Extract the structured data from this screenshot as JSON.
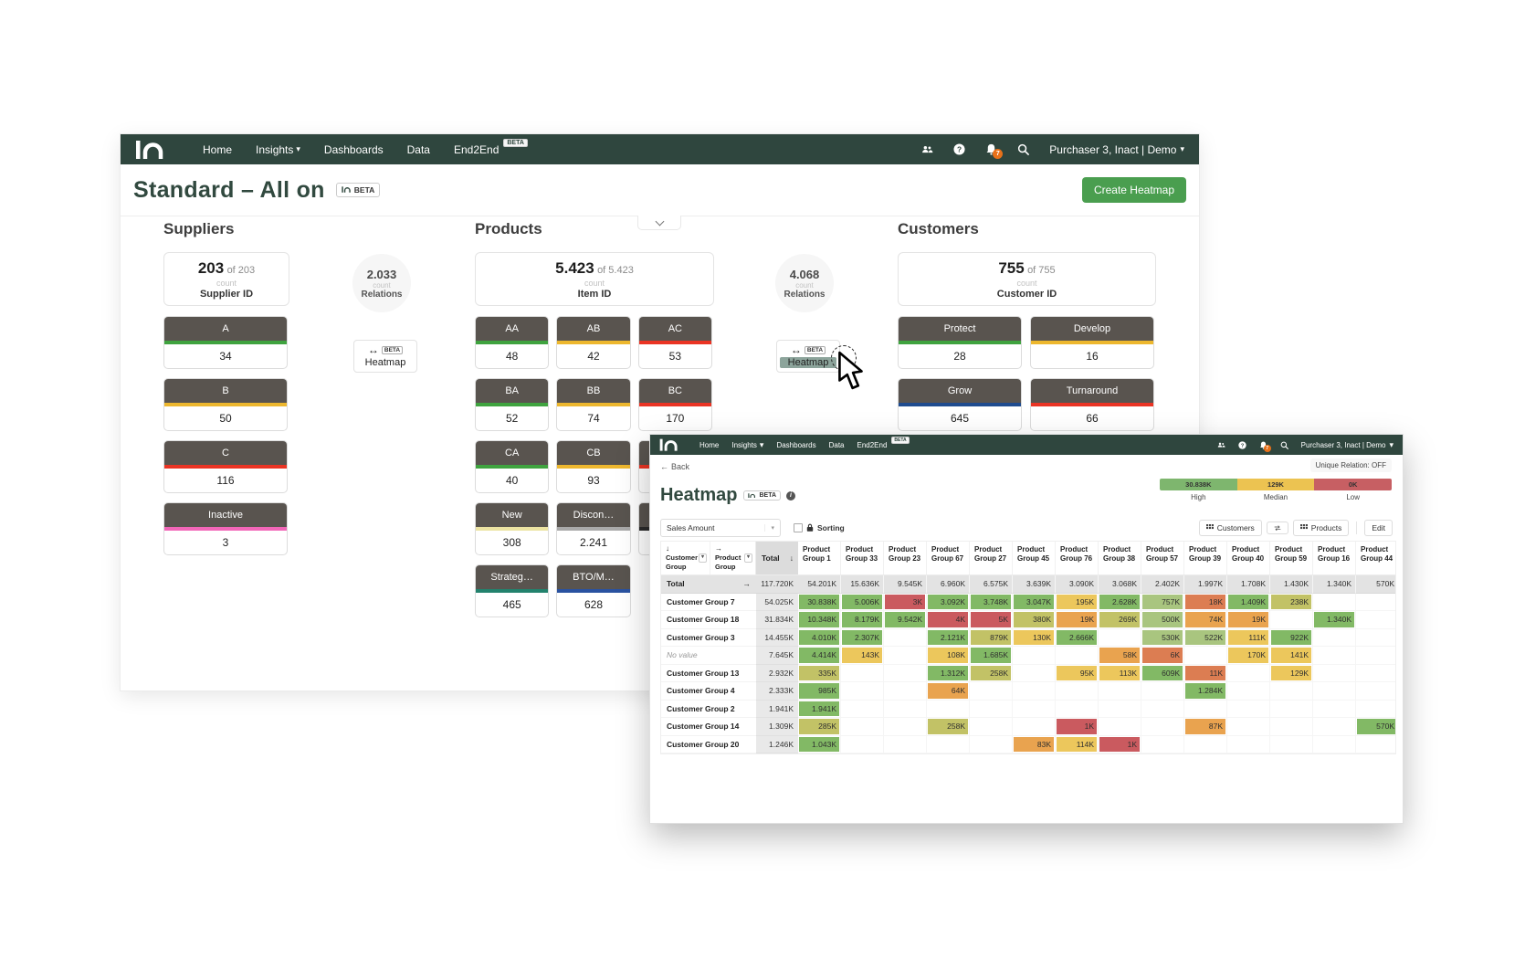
{
  "colors": {
    "navbar_bg": "#2f463e",
    "title_green": "#31493f",
    "button_green": "#4a9e4f",
    "badge_orange": "#e8711a",
    "segment_header": "#59544f",
    "cell": {
      "g": "#82b965",
      "lg": "#a9c57f",
      "yg": "#c2c266",
      "y": "#ecc75c",
      "o": "#e9a34f",
      "ro": "#dc7d52",
      "r": "#ca5a5f"
    }
  },
  "icons": {
    "caret": "▾",
    "back_arrow": "←",
    "relation_arrow": "↔",
    "info": "i",
    "row_arrow": "↓",
    "col_arrow": "→",
    "sort_arrow": "↓",
    "total_arrow": "→"
  },
  "navbar": {
    "items": [
      {
        "label": "Home"
      },
      {
        "label": "Insights"
      },
      {
        "label": "Dashboards"
      },
      {
        "label": "Data"
      },
      {
        "label": "End2End",
        "beta": "BETA"
      }
    ],
    "bell_count": "7",
    "user_menu": "Purchaser 3, Inact | Demo"
  },
  "back_window": {
    "title": "Standard – All on",
    "title_badge": "BETA",
    "create_button": "Create Heatmap",
    "suppliers": {
      "heading": "Suppliers",
      "count_card": {
        "value": "203",
        "of": "of 203",
        "count_label": "count",
        "id_label": "Supplier ID"
      },
      "segments": [
        {
          "label": "A",
          "value": "34",
          "stripe": "#3fa33f"
        },
        {
          "label": "B",
          "value": "50",
          "stripe": "#edb72e"
        },
        {
          "label": "C",
          "value": "116",
          "stripe": "#ea3424"
        },
        {
          "label": "Inactive",
          "value": "3",
          "stripe": "#f266b8"
        }
      ]
    },
    "products": {
      "heading": "Products",
      "count_card": {
        "value": "5.423",
        "of": "of 5.423",
        "count_label": "count",
        "id_label": "Item ID"
      },
      "segments": [
        {
          "label": "AA",
          "value": "48",
          "stripe": "#3fa33f"
        },
        {
          "label": "AB",
          "value": "42",
          "stripe": "#edb72e"
        },
        {
          "label": "AC",
          "value": "53",
          "stripe": "#ea3424"
        },
        {
          "label": "BA",
          "value": "52",
          "stripe": "#3fa33f"
        },
        {
          "label": "BB",
          "value": "74",
          "stripe": "#edb72e"
        },
        {
          "label": "BC",
          "value": "170",
          "stripe": "#ea3424"
        },
        {
          "label": "CA",
          "value": "40",
          "stripe": "#3fa33f"
        },
        {
          "label": "CB",
          "value": "93",
          "stripe": "#edb72e"
        },
        {
          "label": "",
          "value": "",
          "stripe": "#ea3424"
        },
        {
          "label": "New",
          "value": "308",
          "stripe": "#ece3a2"
        },
        {
          "label": "Discon…",
          "value": "2.241",
          "stripe": "#a9a9a9"
        },
        {
          "label": "",
          "value": "",
          "stripe": "#2b2b2b"
        },
        {
          "label": "Strateg…",
          "value": "465",
          "stripe": "#23826d"
        },
        {
          "label": "BTO/M…",
          "value": "628",
          "stripe": "#2a52a0"
        }
      ]
    },
    "customers": {
      "heading": "Customers",
      "count_card": {
        "value": "755",
        "of": "of 755",
        "count_label": "count",
        "id_label": "Customer ID"
      },
      "segments": [
        {
          "label": "Protect",
          "value": "28",
          "stripe": "#3fa33f"
        },
        {
          "label": "Develop",
          "value": "16",
          "stripe": "#edb72e"
        },
        {
          "label": "Grow",
          "value": "645",
          "stripe": "#1f4c8f"
        },
        {
          "label": "Turnaround",
          "value": "66",
          "stripe": "#ea3424"
        }
      ]
    },
    "relations_left": {
      "value": "2.033",
      "count_label": "count",
      "label": "Relations"
    },
    "relations_right": {
      "value": "4.068",
      "count_label": "count",
      "label": "Relations"
    },
    "heatmap_button_left": {
      "beta": "BETA",
      "label": "Heatmap"
    },
    "heatmap_button_right": {
      "beta": "BETA",
      "label": "Heatmap"
    }
  },
  "front_window": {
    "back_link": "Back",
    "title": "Heatmap",
    "title_badge": "BETA",
    "unique_relation": "Unique Relation: OFF",
    "legend": [
      {
        "value": "30.838K",
        "label": "High",
        "color": "#7eb66e"
      },
      {
        "value": "129K",
        "label": "Median",
        "color": "#ecc351"
      },
      {
        "value": "0K",
        "label": "Low",
        "color": "#c75f63"
      }
    ],
    "toolbar": {
      "metric": "Sales Amount",
      "sorting_label": "Sorting",
      "customers_button": "Customers",
      "products_button": "Products",
      "edit_button": "Edit"
    },
    "table": {
      "row_dimension": "Customer Group",
      "col_dimension": "Product Group",
      "total_col_label": "Total",
      "columns": [
        "Product Group 1",
        "Product Group 33",
        "Product Group 23",
        "Product Group 67",
        "Product Group 27",
        "Product Group 45",
        "Product Group 76",
        "Product Group 38",
        "Product Group 57",
        "Product Group 39",
        "Product Group 40",
        "Product Group 59",
        "Product Group 16",
        "Product Group 44"
      ],
      "total_row": {
        "label": "Total",
        "total": "117.720K",
        "cells": [
          "54.201K",
          "15.636K",
          "9.545K",
          "6.960K",
          "6.575K",
          "3.639K",
          "3.090K",
          "3.068K",
          "2.402K",
          "1.997K",
          "1.708K",
          "1.430K",
          "1.340K",
          "570K"
        ]
      },
      "rows": [
        {
          "label": "Customer Group 7",
          "total": "54.025K",
          "cells": [
            [
              "30.838K",
              "g"
            ],
            [
              "5.006K",
              "g"
            ],
            [
              "3K",
              "r"
            ],
            [
              "3.092K",
              "g"
            ],
            [
              "3.748K",
              "g"
            ],
            [
              "3.047K",
              "g"
            ],
            [
              "195K",
              "y"
            ],
            [
              "2.628K",
              "g"
            ],
            [
              "757K",
              "lg"
            ],
            [
              "18K",
              "ro"
            ],
            [
              "1.409K",
              "g"
            ],
            [
              "238K",
              "yg"
            ],
            null,
            null
          ]
        },
        {
          "label": "Customer Group 18",
          "total": "31.834K",
          "cells": [
            [
              "10.348K",
              "g"
            ],
            [
              "8.179K",
              "g"
            ],
            [
              "9.542K",
              "g"
            ],
            [
              "4K",
              "r"
            ],
            [
              "5K",
              "r"
            ],
            [
              "380K",
              "yg"
            ],
            [
              "19K",
              "o"
            ],
            [
              "269K",
              "yg"
            ],
            [
              "500K",
              "lg"
            ],
            [
              "74K",
              "o"
            ],
            [
              "19K",
              "o"
            ],
            null,
            [
              "1.340K",
              "g"
            ],
            null
          ]
        },
        {
          "label": "Customer Group 3",
          "total": "14.455K",
          "cells": [
            [
              "4.010K",
              "g"
            ],
            [
              "2.307K",
              "g"
            ],
            null,
            [
              "2.121K",
              "g"
            ],
            [
              "879K",
              "yg"
            ],
            [
              "130K",
              "y"
            ],
            [
              "2.666K",
              "g"
            ],
            null,
            [
              "530K",
              "lg"
            ],
            [
              "522K",
              "lg"
            ],
            [
              "111K",
              "y"
            ],
            [
              "922K",
              "g"
            ],
            null,
            null
          ]
        },
        {
          "label": "No value",
          "italic": true,
          "total": "7.645K",
          "cells": [
            [
              "4.414K",
              "g"
            ],
            [
              "143K",
              "y"
            ],
            null,
            [
              "108K",
              "y"
            ],
            [
              "1.685K",
              "g"
            ],
            null,
            null,
            [
              "58K",
              "o"
            ],
            [
              "6K",
              "ro"
            ],
            null,
            [
              "170K",
              "y"
            ],
            [
              "141K",
              "y"
            ],
            null,
            null
          ]
        },
        {
          "label": "Customer Group 13",
          "total": "2.932K",
          "cells": [
            [
              "335K",
              "yg"
            ],
            null,
            null,
            [
              "1.312K",
              "g"
            ],
            [
              "258K",
              "yg"
            ],
            null,
            [
              "95K",
              "y"
            ],
            [
              "113K",
              "y"
            ],
            [
              "609K",
              "g"
            ],
            [
              "11K",
              "ro"
            ],
            null,
            [
              "129K",
              "y"
            ],
            null,
            null
          ]
        },
        {
          "label": "Customer Group 4",
          "total": "2.333K",
          "cells": [
            [
              "985K",
              "g"
            ],
            null,
            null,
            [
              "64K",
              "o"
            ],
            null,
            null,
            null,
            null,
            null,
            [
              "1.284K",
              "g"
            ],
            null,
            null,
            null,
            null
          ]
        },
        {
          "label": "Customer Group 2",
          "total": "1.941K",
          "cells": [
            [
              "1.941K",
              "g"
            ],
            null,
            null,
            null,
            null,
            null,
            null,
            null,
            null,
            null,
            null,
            null,
            null,
            null
          ]
        },
        {
          "label": "Customer Group 14",
          "total": "1.309K",
          "cells": [
            [
              "285K",
              "yg"
            ],
            null,
            null,
            [
              "258K",
              "yg"
            ],
            null,
            null,
            [
              "1K",
              "r"
            ],
            null,
            null,
            [
              "87K",
              "o"
            ],
            null,
            null,
            null,
            [
              "570K",
              "g"
            ]
          ]
        },
        {
          "label": "Customer Group 20",
          "total": "1.246K",
          "cells": [
            [
              "1.043K",
              "g"
            ],
            null,
            null,
            null,
            null,
            [
              "83K",
              "o"
            ],
            [
              "114K",
              "y"
            ],
            [
              "1K",
              "r"
            ],
            null,
            null,
            null,
            null,
            null,
            null
          ]
        }
      ]
    }
  }
}
